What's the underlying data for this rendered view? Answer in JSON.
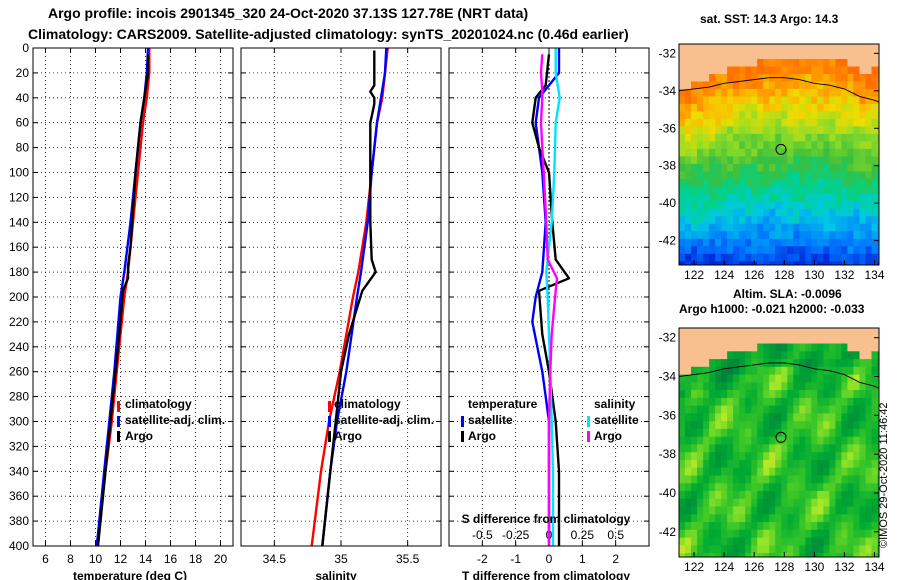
{
  "title_line1": "Argo profile: incois 2901345_320 24-Oct-2020 37.13S 127.78E (NRT data)",
  "title_line2": "Climatology: CARS2009. Satellite-adjusted climatology: synTS_20201024.nc (0.46d earlier)",
  "sst_title": "sat. SST: 14.3 Argo: 14.3",
  "sla_title_line1": "Altim. SLA: -0.0096",
  "sla_title_line2": "Argo h1000: -0.021 h2000: -0.033",
  "credit": "©IMOS 29-Oct-2020 11:46:42",
  "colors": {
    "climatology": "#ff0000",
    "satellite": "#0000ff",
    "argo": "#000000",
    "sat_t_diff": "#0000ff",
    "sat_s_diff": "#00e5ff",
    "argo_s_diff": "#ff00ff",
    "land": "#f9c08f"
  },
  "chart_data": [
    {
      "type": "line",
      "xlabel": "temperature (deg C)",
      "ylabel": "",
      "xlim": [
        5,
        21
      ],
      "ylim": [
        400,
        0
      ],
      "xticks": [
        6,
        8,
        10,
        12,
        14,
        16,
        18,
        20
      ],
      "yticks": [
        0,
        20,
        40,
        60,
        80,
        100,
        120,
        140,
        160,
        180,
        200,
        220,
        240,
        260,
        280,
        300,
        320,
        340,
        360,
        380,
        400
      ],
      "legend": [
        "climatology",
        "satellite-adj. clim.",
        "Argo"
      ],
      "series": [
        {
          "name": "climatology",
          "depth": [
            0,
            20,
            40,
            60,
            100,
            140,
            180,
            200,
            260,
            300,
            340,
            400
          ],
          "values": [
            14.3,
            14.3,
            14.1,
            13.8,
            13.4,
            13.0,
            12.6,
            12.3,
            11.7,
            11.3,
            10.8,
            10.1
          ]
        },
        {
          "name": "satellite-adj. clim.",
          "depth": [
            0,
            20,
            40,
            60,
            100,
            140,
            180,
            200,
            260,
            300,
            340,
            400
          ],
          "values": [
            14.2,
            14.1,
            13.9,
            13.6,
            13.2,
            12.8,
            12.3,
            12.0,
            11.5,
            11.1,
            10.7,
            10.1
          ]
        },
        {
          "name": "Argo",
          "depth": [
            5,
            20,
            40,
            60,
            80,
            100,
            130,
            160,
            175,
            185,
            195,
            230,
            260,
            300,
            340,
            400
          ],
          "values": [
            14.2,
            14.2,
            13.9,
            13.6,
            13.4,
            13.2,
            13.0,
            12.8,
            12.6,
            12.6,
            12.2,
            11.9,
            11.6,
            11.2,
            10.8,
            10.2
          ]
        }
      ]
    },
    {
      "type": "line",
      "xlabel": "salinity",
      "ylabel": "",
      "xlim": [
        34.25,
        35.75
      ],
      "ylim": [
        400,
        0
      ],
      "xticks": [
        34.5,
        35,
        35.5
      ],
      "legend": [
        "climatology",
        "satellite-adj. clim.",
        "Argo"
      ],
      "series": [
        {
          "name": "climatology",
          "depth": [
            0,
            20,
            40,
            60,
            100,
            140,
            180,
            200,
            260,
            300,
            340,
            400
          ],
          "values": [
            35.35,
            35.33,
            35.31,
            35.27,
            35.23,
            35.19,
            35.13,
            35.09,
            34.99,
            34.91,
            34.85,
            34.78
          ]
        },
        {
          "name": "satellite-adj. clim.",
          "depth": [
            0,
            20,
            40,
            60,
            100,
            140,
            180,
            200,
            260,
            300,
            340,
            400
          ],
          "values": [
            35.34,
            35.33,
            35.3,
            35.27,
            35.23,
            35.2,
            35.15,
            35.12,
            35.04,
            34.97,
            34.92,
            34.86
          ]
        },
        {
          "name": "Argo",
          "depth": [
            2,
            10,
            20,
            30,
            35,
            40,
            45,
            55,
            60,
            80,
            100,
            140,
            170,
            180,
            195,
            230,
            260,
            300,
            340,
            400
          ],
          "values": [
            35.25,
            35.25,
            35.25,
            35.25,
            35.22,
            35.25,
            35.25,
            35.23,
            35.22,
            35.22,
            35.22,
            35.22,
            35.23,
            35.26,
            35.16,
            35.06,
            35.0,
            34.96,
            34.92,
            34.86
          ]
        }
      ]
    },
    {
      "type": "line",
      "xlabel": "T difference from climatology",
      "x2label": "S difference from climatology",
      "ylabel": "",
      "xlim": [
        -3,
        3
      ],
      "x2lim": [
        -0.75,
        0.75
      ],
      "ylim": [
        400,
        0
      ],
      "xticks": [
        -2,
        -1,
        0,
        1,
        2
      ],
      "x2ticks": [
        -0.5,
        -0.25,
        0,
        0.25,
        0.5
      ],
      "legend_temperature": {
        "title": "temperature",
        "items": [
          "satellite",
          "Argo"
        ]
      },
      "legend_salinity": {
        "title": "salinity",
        "items": [
          "satellite",
          "Argo"
        ]
      },
      "series": [
        {
          "name": "T satellite",
          "depth": [
            0,
            20,
            40,
            60,
            80,
            100,
            140,
            180,
            200,
            220,
            260,
            280,
            300,
            340,
            400
          ],
          "values": [
            0.3,
            0.3,
            -0.3,
            -0.4,
            -0.3,
            -0.2,
            -0.1,
            -0.2,
            -0.4,
            -0.5,
            -0.2,
            -0.1,
            0,
            0,
            0
          ]
        },
        {
          "name": "T Argo",
          "depth": [
            5,
            30,
            40,
            60,
            80,
            100,
            140,
            170,
            185,
            195,
            230,
            260,
            300,
            340,
            400
          ],
          "values": [
            0.0,
            -0.1,
            -0.4,
            -0.5,
            -0.3,
            0.0,
            0.1,
            0.2,
            0.6,
            -0.3,
            -0.2,
            0.0,
            0.2,
            0.3,
            0.3
          ]
        },
        {
          "name": "S satellite",
          "depth": [
            0,
            20,
            40,
            60,
            100,
            140,
            180,
            200,
            260,
            300,
            340,
            400
          ],
          "values": [
            0.05,
            0.05,
            0.08,
            0.05,
            0.04,
            0.02,
            -0.02,
            -0.01,
            0.01,
            0.02,
            0.03,
            0.03
          ]
        },
        {
          "name": "S Argo",
          "depth": [
            5,
            20,
            35,
            40,
            60,
            80,
            100,
            140,
            170,
            185,
            195,
            230,
            260,
            300,
            340,
            400
          ],
          "values": [
            -0.05,
            -0.06,
            -0.05,
            -0.05,
            -0.06,
            -0.05,
            -0.04,
            -0.02,
            -0.01,
            0.06,
            0.05,
            0.02,
            0.01,
            0.0,
            0.0,
            0.0
          ]
        }
      ]
    },
    {
      "type": "heatmap",
      "title": "sat. SST: 14.3 Argo: 14.3",
      "xlim": [
        121,
        134.3
      ],
      "ylim": [
        -43.3,
        -31.5
      ],
      "xticks": [
        122,
        124,
        126,
        128,
        130,
        132,
        134
      ],
      "yticks": [
        -32,
        -34,
        -36,
        -38,
        -40,
        -42
      ],
      "argo_position": [
        127.78,
        -37.13
      ],
      "colorscale": "sst"
    },
    {
      "type": "heatmap",
      "title": "Altim. SLA: -0.0096",
      "xlim": [
        121,
        134.3
      ],
      "ylim": [
        -43.3,
        -31.5
      ],
      "xticks": [
        122,
        124,
        126,
        128,
        130,
        132,
        134
      ],
      "yticks": [
        -32,
        -34,
        -36,
        -38,
        -40,
        -42
      ],
      "argo_position": [
        127.78,
        -37.13
      ],
      "colorscale": "sla"
    }
  ]
}
